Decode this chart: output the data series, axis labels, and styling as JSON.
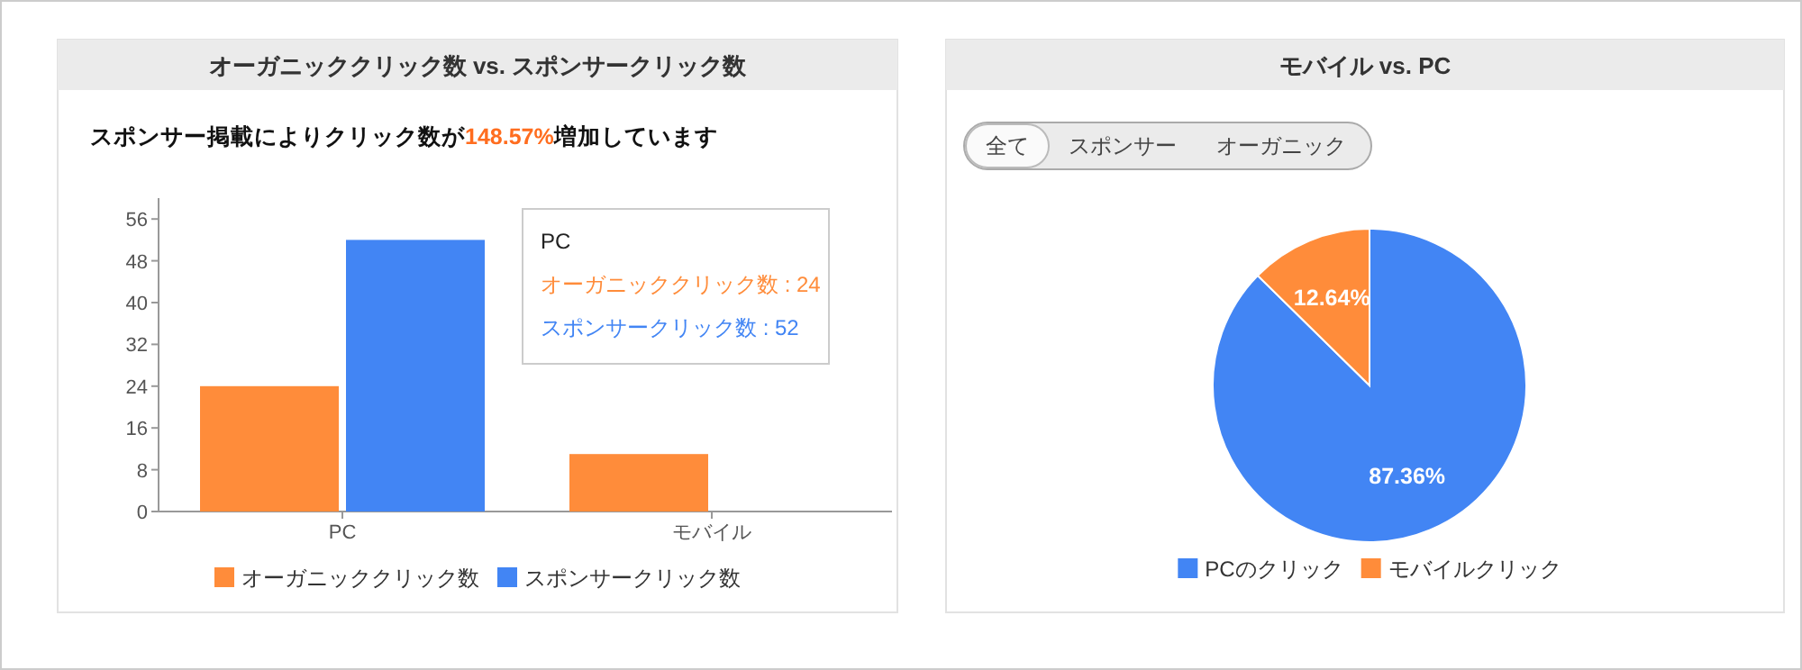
{
  "chart_data": [
    {
      "type": "bar",
      "title": "オーガニッククリック数 vs. スポンサークリック数",
      "subtitle": "スポンサー掲載によりクリック数が148.57%増加しています",
      "categories": [
        "PC",
        "モバイル"
      ],
      "series": [
        {
          "name": "オーガニッククリック数",
          "color": "#ff8c3a",
          "values": [
            24,
            11
          ]
        },
        {
          "name": "スポンサークリック数",
          "color": "#4285f4",
          "values": [
            52,
            0
          ]
        }
      ],
      "ylim": [
        0,
        60
      ],
      "yticks": [
        0,
        8,
        16,
        24,
        32,
        40,
        48,
        56
      ],
      "grid": false,
      "legend": "bottom",
      "annotations": [
        "PC",
        "オーガニッククリック数 : 24",
        "スポンサークリック数 : 52"
      ]
    },
    {
      "type": "pie",
      "title": "モバイル vs. PC",
      "categories": [
        "PCのクリック",
        "モバイルクリック"
      ],
      "values": [
        87.36,
        12.64
      ],
      "colors": [
        "#4285f4",
        "#ff8c3a"
      ],
      "value_labels": [
        "87.36%",
        "12.64%"
      ],
      "legend": "bottom",
      "annotations": [
        "全て",
        "スポンサー",
        "オーガニック"
      ]
    }
  ]
}
